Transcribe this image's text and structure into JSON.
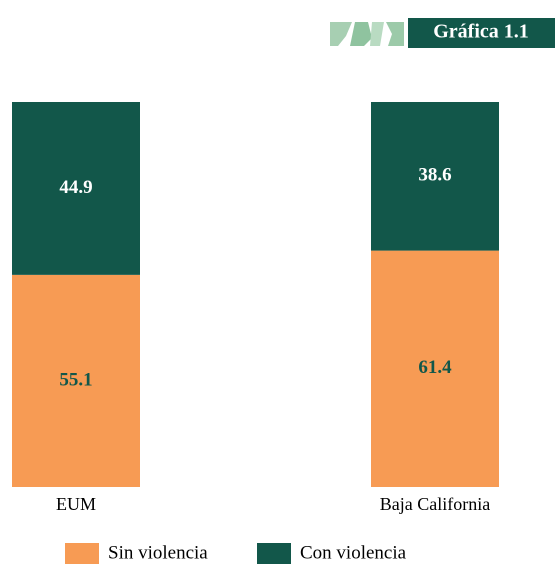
{
  "chart_data": {
    "type": "stacked-bar",
    "title": "Gráfica 1.1",
    "categories": [
      "EUM",
      "Baja California"
    ],
    "series": [
      {
        "name": "Sin violencia",
        "color": "#f79b54",
        "label_color": "#12574a",
        "values": [
          55.1,
          61.4
        ]
      },
      {
        "name": "Con violencia",
        "color": "#12574a",
        "label_color": "#ffffff",
        "values": [
          44.9,
          38.6
        ]
      }
    ],
    "ylim": [
      0,
      100
    ]
  }
}
